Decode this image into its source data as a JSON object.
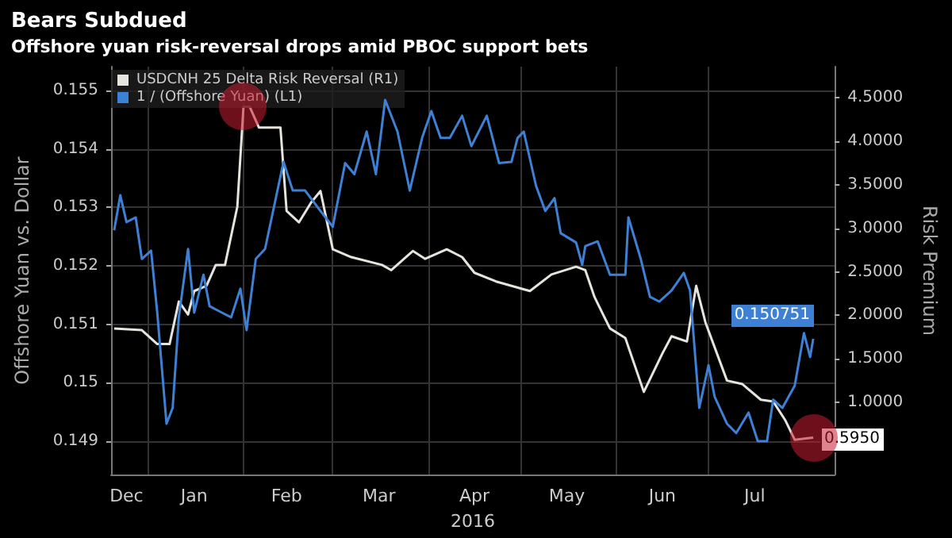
{
  "chart_data": {
    "type": "line",
    "title": "Bears Subdued",
    "subtitle": "Offshore yuan risk-reversal drops amid PBOC support bets",
    "xlabel": "2016",
    "ylabel": "Offshore Yuan vs. Dollar",
    "y2label": "Risk Premium",
    "series": [
      {
        "name": "USDCNH 25 Delta Risk Reversal (R1)",
        "color": "#e6e4dc",
        "axis": "y2",
        "x": [
          "2015-12-21",
          "2015-12-30",
          "2016-01-04",
          "2016-01-08",
          "2016-01-11",
          "2016-01-14",
          "2016-01-16",
          "2016-01-20",
          "2016-01-23",
          "2016-01-26",
          "2016-01-30",
          "2016-02-01",
          "2016-02-03",
          "2016-02-06",
          "2016-02-13",
          "2016-02-15",
          "2016-02-19",
          "2016-02-23",
          "2016-02-26",
          "2016-03-01",
          "2016-03-07",
          "2016-03-17",
          "2016-03-20",
          "2016-03-27",
          "2016-03-31",
          "2016-04-07",
          "2016-04-12",
          "2016-04-16",
          "2016-04-23",
          "2016-05-04",
          "2016-05-11",
          "2016-05-19",
          "2016-05-22",
          "2016-05-25",
          "2016-05-30",
          "2016-06-04",
          "2016-06-10",
          "2016-06-16",
          "2016-06-19",
          "2016-06-24",
          "2016-06-27",
          "2016-06-30",
          "2016-07-07",
          "2016-07-12",
          "2016-07-18",
          "2016-07-22",
          "2016-07-26",
          "2016-07-29",
          "2016-08-04"
        ],
        "values": [
          1.85,
          1.83,
          1.67,
          1.67,
          2.16,
          2.01,
          2.28,
          2.34,
          2.58,
          2.58,
          3.25,
          4.4,
          4.4,
          4.16,
          4.16,
          3.2,
          3.07,
          3.3,
          3.43,
          2.76,
          2.67,
          2.58,
          2.52,
          2.74,
          2.65,
          2.76,
          2.67,
          2.49,
          2.39,
          2.28,
          2.47,
          2.56,
          2.52,
          2.21,
          1.85,
          1.74,
          1.12,
          1.56,
          1.76,
          1.7,
          2.34,
          1.92,
          1.25,
          1.21,
          1.03,
          1.01,
          0.79,
          0.57,
          0.595
        ],
        "value_labels": [
          null,
          null,
          null,
          null,
          null,
          null,
          null,
          null,
          null,
          null,
          null,
          null,
          null,
          null,
          null,
          null,
          null,
          null,
          null,
          null,
          null,
          null,
          null,
          null,
          null,
          null,
          null,
          null,
          null,
          null,
          null,
          null,
          null,
          null,
          null,
          null,
          null,
          null,
          null,
          null,
          null,
          null,
          null,
          null,
          null,
          null,
          null,
          null,
          "0.5950"
        ]
      },
      {
        "name": "1 / (Offshore Yuan) (L1)",
        "color": "#3d80d4",
        "x": [
          "2015-12-21",
          "2015-12-23",
          "2015-12-25",
          "2015-12-28",
          "2015-12-30",
          "2016-01-02",
          "2016-01-04",
          "2016-01-07",
          "2016-01-09",
          "2016-01-11",
          "2016-01-14",
          "2016-01-16",
          "2016-01-19",
          "2016-01-21",
          "2016-01-25",
          "2016-01-28",
          "2016-01-31",
          "2016-02-02",
          "2016-02-05",
          "2016-02-08",
          "2016-02-14",
          "2016-02-17",
          "2016-02-21",
          "2016-02-26",
          "2016-03-01",
          "2016-03-05",
          "2016-03-08",
          "2016-03-12",
          "2016-03-15",
          "2016-03-18",
          "2016-03-22",
          "2016-03-26",
          "2016-03-30",
          "2016-04-02",
          "2016-04-05",
          "2016-04-08",
          "2016-04-12",
          "2016-04-15",
          "2016-04-20",
          "2016-04-24",
          "2016-04-28",
          "2016-04-30",
          "2016-05-02",
          "2016-05-06",
          "2016-05-09",
          "2016-05-12",
          "2016-05-14",
          "2016-05-19",
          "2016-05-21",
          "2016-05-22",
          "2016-05-26",
          "2016-05-30",
          "2016-06-04",
          "2016-06-05",
          "2016-06-09",
          "2016-06-12",
          "2016-06-15",
          "2016-06-19",
          "2016-06-23",
          "2016-06-25",
          "2016-06-28",
          "2016-07-01",
          "2016-07-03",
          "2016-07-07",
          "2016-07-10",
          "2016-07-14",
          "2016-07-17",
          "2016-07-20",
          "2016-07-22",
          "2016-07-25",
          "2016-07-29",
          "2016-08-01",
          "2016-08-03",
          "2016-08-04"
        ],
        "values": [
          0.15261,
          0.15321,
          0.15275,
          0.15283,
          0.15212,
          0.15226,
          0.1512,
          0.1493,
          0.14957,
          0.15112,
          0.15229,
          0.1512,
          0.15185,
          0.15131,
          0.1512,
          0.15112,
          0.15161,
          0.1509,
          0.15212,
          0.15229,
          0.15378,
          0.15329,
          0.15329,
          0.15294,
          0.15267,
          0.15376,
          0.15357,
          0.1543,
          0.15357,
          0.15484,
          0.1543,
          0.15329,
          0.15419,
          0.15465,
          0.15419,
          0.15419,
          0.15457,
          0.15405,
          0.15457,
          0.15376,
          0.15378,
          0.15419,
          0.1543,
          0.15337,
          0.15294,
          0.15316,
          0.15256,
          0.1524,
          0.15202,
          0.15234,
          0.15242,
          0.15185,
          0.15185,
          0.15283,
          0.15212,
          0.15147,
          0.15139,
          0.15158,
          0.15188,
          0.15158,
          0.14957,
          0.1503,
          0.14976,
          0.1493,
          0.14914,
          0.14949,
          0.149,
          0.149,
          0.14971,
          0.14957,
          0.14995,
          0.15085,
          0.15044,
          0.150751
        ],
        "value_labels": [
          null,
          null,
          null,
          null,
          null,
          null,
          null,
          null,
          null,
          null,
          null,
          null,
          null,
          null,
          null,
          null,
          null,
          null,
          null,
          null,
          null,
          null,
          null,
          null,
          null,
          null,
          null,
          null,
          null,
          null,
          null,
          null,
          null,
          null,
          null,
          null,
          null,
          null,
          null,
          null,
          null,
          null,
          null,
          null,
          null,
          null,
          null,
          null,
          null,
          null,
          null,
          null,
          null,
          null,
          null,
          null,
          null,
          null,
          null,
          null,
          null,
          null,
          null,
          null,
          null,
          null,
          null,
          null,
          null,
          null,
          null,
          null,
          null,
          "0.150751"
        ]
      }
    ],
    "xlim": [
      "2015-12-20",
      "2016-08-11"
    ],
    "xticks": [
      {
        "value": "2015-12-25",
        "label": "Dec"
      },
      {
        "value": "2016-01-01",
        "label": null
      },
      {
        "value": "2016-01-16",
        "label": "Jan"
      },
      {
        "value": "2016-02-01",
        "label": null
      },
      {
        "value": "2016-02-15",
        "label": "Feb"
      },
      {
        "value": "2016-03-01",
        "label": null
      },
      {
        "value": "2016-03-16",
        "label": "Mar"
      },
      {
        "value": "2016-04-01",
        "label": null
      },
      {
        "value": "2016-04-16",
        "label": "Apr"
      },
      {
        "value": "2016-05-01",
        "label": null
      },
      {
        "value": "2016-05-16",
        "label": "May"
      },
      {
        "value": "2016-06-01",
        "label": null
      },
      {
        "value": "2016-06-16",
        "label": "Jun"
      },
      {
        "value": "2016-07-01",
        "label": null
      },
      {
        "value": "2016-07-16",
        "label": "Jul"
      }
    ],
    "ylim": [
      0.14843,
      0.15541
    ],
    "yticks": [
      0.149,
      0.15,
      0.151,
      0.152,
      0.153,
      0.154,
      0.155
    ],
    "y2lim": [
      0.17,
      4.86
    ],
    "y2ticks": [
      {
        "value": 0.5,
        "label": null
      },
      {
        "value": 1,
        "label": "1.0000"
      },
      {
        "value": 1.5,
        "label": "1.5000"
      },
      {
        "value": 2,
        "label": "2.0000"
      },
      {
        "value": 2.5,
        "label": "2.5000"
      },
      {
        "value": 3,
        "label": "3.0000"
      },
      {
        "value": 3.5,
        "label": "3.5000"
      },
      {
        "value": 4,
        "label": "4.0000"
      },
      {
        "value": 4.5,
        "label": "4.5000"
      }
    ],
    "grid": true,
    "legend": "top left"
  }
}
